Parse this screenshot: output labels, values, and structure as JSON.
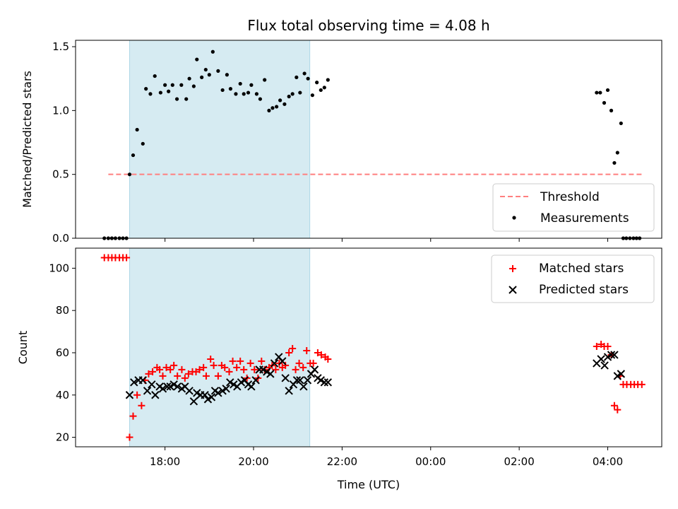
{
  "chart_data": [
    {
      "type": "scatter",
      "title": "Flux total observing time = 4.08 h",
      "ylabel": "Matched/Predicted stars",
      "ylim": [
        0,
        1.55
      ],
      "yticks": [
        0,
        0.5,
        1.0,
        1.5
      ],
      "ytick_labels": [
        "0.0",
        "0.5",
        "1.0",
        "1.5"
      ],
      "xlim_hours": [
        15.98,
        29.22
      ],
      "observing_window_hours": [
        17.2,
        21.27
      ],
      "threshold": {
        "name": "Threshold",
        "y": 0.5,
        "x_hours": [
          16.72,
          28.8
        ],
        "color": "#ff7f7f"
      },
      "legend": {
        "placement": "lower-right",
        "entries": [
          "Threshold",
          "Measurements"
        ]
      },
      "series": [
        {
          "name": "Measurements",
          "color": "#000000",
          "points": [
            [
              16.63,
              0
            ],
            [
              16.72,
              0
            ],
            [
              16.8,
              0
            ],
            [
              16.88,
              0
            ],
            [
              16.97,
              0
            ],
            [
              17.05,
              0
            ],
            [
              17.13,
              0
            ],
            [
              17.2,
              0.5
            ],
            [
              17.28,
              0.65
            ],
            [
              17.37,
              0.85
            ],
            [
              17.5,
              0.74
            ],
            [
              17.57,
              1.17
            ],
            [
              17.67,
              1.13
            ],
            [
              17.77,
              1.27
            ],
            [
              17.9,
              1.14
            ],
            [
              18.0,
              1.2
            ],
            [
              18.08,
              1.15
            ],
            [
              18.17,
              1.2
            ],
            [
              18.27,
              1.09
            ],
            [
              18.37,
              1.2
            ],
            [
              18.48,
              1.09
            ],
            [
              18.55,
              1.25
            ],
            [
              18.65,
              1.19
            ],
            [
              18.72,
              1.4
            ],
            [
              18.83,
              1.26
            ],
            [
              18.92,
              1.32
            ],
            [
              19.0,
              1.28
            ],
            [
              19.08,
              1.46
            ],
            [
              19.2,
              1.31
            ],
            [
              19.3,
              1.16
            ],
            [
              19.4,
              1.28
            ],
            [
              19.48,
              1.17
            ],
            [
              19.6,
              1.13
            ],
            [
              19.7,
              1.21
            ],
            [
              19.78,
              1.13
            ],
            [
              19.88,
              1.14
            ],
            [
              19.95,
              1.2
            ],
            [
              20.07,
              1.13
            ],
            [
              20.15,
              1.09
            ],
            [
              20.25,
              1.24
            ],
            [
              20.35,
              1.0
            ],
            [
              20.43,
              1.02
            ],
            [
              20.52,
              1.03
            ],
            [
              20.6,
              1.08
            ],
            [
              20.7,
              1.05
            ],
            [
              20.8,
              1.11
            ],
            [
              20.88,
              1.13
            ],
            [
              20.97,
              1.26
            ],
            [
              21.05,
              1.14
            ],
            [
              21.15,
              1.29
            ],
            [
              21.23,
              1.25
            ],
            [
              21.33,
              1.12
            ],
            [
              21.43,
              1.22
            ],
            [
              21.52,
              1.16
            ],
            [
              21.6,
              1.18
            ],
            [
              21.68,
              1.24
            ],
            [
              27.75,
              1.14
            ],
            [
              27.83,
              1.14
            ],
            [
              27.92,
              1.06
            ],
            [
              28.0,
              1.16
            ],
            [
              28.08,
              1.0
            ],
            [
              28.15,
              0.59
            ],
            [
              28.22,
              0.67
            ],
            [
              28.3,
              0.9
            ],
            [
              28.35,
              0
            ],
            [
              28.42,
              0
            ],
            [
              28.5,
              0
            ],
            [
              28.58,
              0
            ],
            [
              28.65,
              0
            ],
            [
              28.72,
              0
            ]
          ]
        }
      ]
    },
    {
      "type": "scatter",
      "xlabel": "Time (UTC)",
      "ylabel": "Count",
      "ylim": [
        15.5,
        109.5
      ],
      "yticks": [
        20,
        40,
        60,
        80,
        100
      ],
      "ytick_labels": [
        "20",
        "40",
        "60",
        "80",
        "100"
      ],
      "xlim_hours": [
        15.98,
        29.22
      ],
      "xticks_hours": [
        18,
        20,
        22,
        24,
        26,
        28
      ],
      "xtick_labels": [
        "18:00",
        "20:00",
        "22:00",
        "00:00",
        "02:00",
        "04:00"
      ],
      "observing_window_hours": [
        17.2,
        21.27
      ],
      "legend": {
        "placement": "upper-right",
        "entries": [
          "Matched stars",
          "Predicted stars"
        ]
      },
      "series": [
        {
          "name": "Matched stars",
          "marker": "plus",
          "color": "#ff0000",
          "points": [
            [
              16.63,
              105
            ],
            [
              16.72,
              105
            ],
            [
              16.8,
              105
            ],
            [
              16.88,
              105
            ],
            [
              16.97,
              105
            ],
            [
              17.05,
              105
            ],
            [
              17.13,
              105
            ],
            [
              17.2,
              20
            ],
            [
              17.28,
              30
            ],
            [
              17.37,
              40
            ],
            [
              17.47,
              35
            ],
            [
              17.55,
              47
            ],
            [
              17.63,
              50
            ],
            [
              17.72,
              51
            ],
            [
              17.82,
              53
            ],
            [
              17.88,
              52
            ],
            [
              17.95,
              49
            ],
            [
              18.03,
              53
            ],
            [
              18.12,
              52
            ],
            [
              18.2,
              54
            ],
            [
              18.28,
              49
            ],
            [
              18.38,
              52
            ],
            [
              18.45,
              48
            ],
            [
              18.53,
              50
            ],
            [
              18.62,
              51
            ],
            [
              18.7,
              51
            ],
            [
              18.78,
              52
            ],
            [
              18.87,
              53
            ],
            [
              18.93,
              49
            ],
            [
              19.03,
              57
            ],
            [
              19.1,
              54
            ],
            [
              19.2,
              49
            ],
            [
              19.28,
              54
            ],
            [
              19.35,
              53
            ],
            [
              19.45,
              51
            ],
            [
              19.53,
              56
            ],
            [
              19.62,
              53
            ],
            [
              19.7,
              56
            ],
            [
              19.78,
              52
            ],
            [
              19.85,
              48
            ],
            [
              19.93,
              55
            ],
            [
              20.02,
              52
            ],
            [
              20.1,
              48
            ],
            [
              20.18,
              56
            ],
            [
              20.25,
              52
            ],
            [
              20.35,
              53
            ],
            [
              20.42,
              54
            ],
            [
              20.5,
              52
            ],
            [
              20.58,
              55
            ],
            [
              20.65,
              53
            ],
            [
              20.72,
              54
            ],
            [
              20.8,
              60
            ],
            [
              20.88,
              62
            ],
            [
              20.95,
              52
            ],
            [
              21.03,
              55
            ],
            [
              21.12,
              53
            ],
            [
              21.2,
              61
            ],
            [
              21.28,
              55
            ],
            [
              21.35,
              55
            ],
            [
              21.45,
              60
            ],
            [
              21.53,
              59
            ],
            [
              21.62,
              58
            ],
            [
              21.68,
              57
            ],
            [
              27.75,
              63
            ],
            [
              27.85,
              64
            ],
            [
              27.92,
              63
            ],
            [
              28.0,
              63
            ],
            [
              28.08,
              59
            ],
            [
              28.15,
              35
            ],
            [
              28.22,
              33
            ],
            [
              28.28,
              49
            ],
            [
              28.35,
              45
            ],
            [
              28.43,
              45
            ],
            [
              28.52,
              45
            ],
            [
              28.6,
              45
            ],
            [
              28.68,
              45
            ],
            [
              28.77,
              45
            ]
          ]
        },
        {
          "name": "Predicted stars",
          "marker": "x",
          "color": "#000000",
          "points": [
            [
              17.2,
              40
            ],
            [
              17.3,
              46
            ],
            [
              17.4,
              47
            ],
            [
              17.5,
              47
            ],
            [
              17.6,
              42
            ],
            [
              17.7,
              45
            ],
            [
              17.78,
              40
            ],
            [
              17.88,
              44
            ],
            [
              17.95,
              43
            ],
            [
              18.05,
              44
            ],
            [
              18.12,
              44
            ],
            [
              18.2,
              45
            ],
            [
              18.28,
              44
            ],
            [
              18.38,
              43
            ],
            [
              18.45,
              44
            ],
            [
              18.55,
              42
            ],
            [
              18.65,
              37
            ],
            [
              18.72,
              41
            ],
            [
              18.8,
              40
            ],
            [
              18.9,
              40
            ],
            [
              18.97,
              38
            ],
            [
              19.05,
              39
            ],
            [
              19.13,
              42
            ],
            [
              19.2,
              41
            ],
            [
              19.3,
              42
            ],
            [
              19.38,
              43
            ],
            [
              19.47,
              46
            ],
            [
              19.55,
              45
            ],
            [
              19.63,
              44
            ],
            [
              19.72,
              46
            ],
            [
              19.8,
              47
            ],
            [
              19.88,
              45
            ],
            [
              19.95,
              44
            ],
            [
              20.05,
              47
            ],
            [
              20.13,
              52
            ],
            [
              20.22,
              52
            ],
            [
              20.3,
              51
            ],
            [
              20.38,
              50
            ],
            [
              20.47,
              55
            ],
            [
              20.57,
              58
            ],
            [
              20.65,
              56
            ],
            [
              20.72,
              48
            ],
            [
              20.8,
              42
            ],
            [
              20.9,
              45
            ],
            [
              20.98,
              47
            ],
            [
              21.05,
              47
            ],
            [
              21.13,
              44
            ],
            [
              21.22,
              47
            ],
            [
              21.3,
              50
            ],
            [
              21.38,
              52
            ],
            [
              21.45,
              48
            ],
            [
              21.52,
              47
            ],
            [
              21.6,
              46
            ],
            [
              21.68,
              46
            ],
            [
              27.75,
              55
            ],
            [
              27.85,
              57
            ],
            [
              27.93,
              54
            ],
            [
              28.0,
              58
            ],
            [
              28.08,
              59
            ],
            [
              28.15,
              59
            ],
            [
              28.22,
              49
            ],
            [
              28.3,
              50
            ]
          ]
        }
      ]
    }
  ]
}
